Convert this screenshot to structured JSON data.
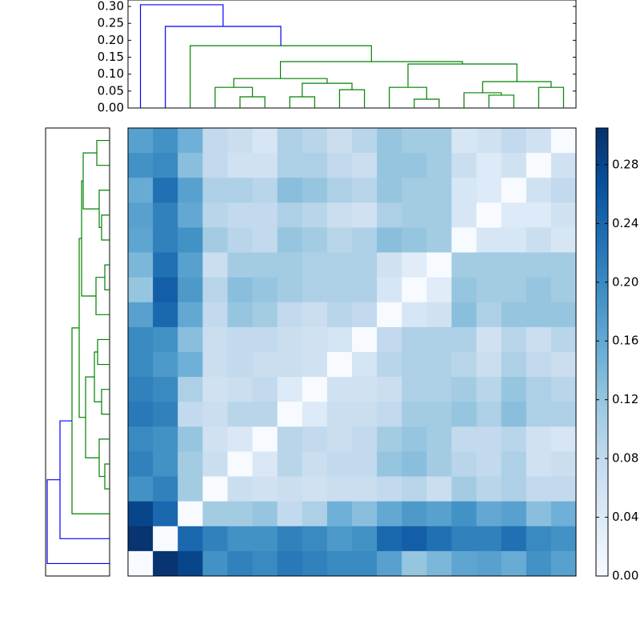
{
  "chart_data": {
    "type": "clustermap",
    "heatmap": {
      "values": [
        [
          0.17,
          0.19,
          0.15,
          0.08,
          0.07,
          0.05,
          0.1,
          0.09,
          0.07,
          0.09,
          0.12,
          0.11,
          0.11,
          0.05,
          0.06,
          0.08,
          0.06,
          0
        ],
        [
          0.19,
          0.2,
          0.13,
          0.08,
          0.06,
          0.06,
          0.1,
          0.1,
          0.08,
          0.07,
          0.12,
          0.12,
          0.11,
          0.07,
          0.04,
          0.06,
          0,
          0.06
        ],
        [
          0.155,
          0.23,
          0.17,
          0.1,
          0.1,
          0.09,
          0.13,
          0.12,
          0.1,
          0.09,
          0.12,
          0.11,
          0.11,
          0.05,
          0.04,
          0,
          0.06,
          0.08
        ],
        [
          0.17,
          0.21,
          0.16,
          0.09,
          0.08,
          0.08,
          0.1,
          0.09,
          0.07,
          0.06,
          0.1,
          0.11,
          0.11,
          0.05,
          0,
          0.04,
          0.04,
          0.06
        ],
        [
          0.165,
          0.21,
          0.19,
          0.11,
          0.09,
          0.08,
          0.12,
          0.11,
          0.09,
          0.1,
          0.13,
          0.12,
          0.11,
          0,
          0.05,
          0.05,
          0.07,
          0.05
        ],
        [
          0.14,
          0.23,
          0.17,
          0.07,
          0.11,
          0.11,
          0.11,
          0.1,
          0.1,
          0.1,
          0.06,
          0.035,
          0,
          0.11,
          0.11,
          0.11,
          0.11,
          0.11
        ],
        [
          0.12,
          0.25,
          0.18,
          0.09,
          0.13,
          0.12,
          0.11,
          0.1,
          0.1,
          0.1,
          0.05,
          0,
          0.035,
          0.12,
          0.11,
          0.11,
          0.12,
          0.11
        ],
        [
          0.17,
          0.24,
          0.16,
          0.08,
          0.12,
          0.11,
          0.08,
          0.07,
          0.09,
          0.08,
          0,
          0.05,
          0.06,
          0.13,
          0.1,
          0.12,
          0.12,
          0.12
        ],
        [
          0.2,
          0.19,
          0.13,
          0.07,
          0.08,
          0.08,
          0.07,
          0.06,
          0.055,
          0,
          0.08,
          0.1,
          0.1,
          0.1,
          0.06,
          0.09,
          0.07,
          0.09
        ],
        [
          0.2,
          0.18,
          0.15,
          0.07,
          0.08,
          0.07,
          0.07,
          0.06,
          0,
          0.055,
          0.09,
          0.1,
          0.1,
          0.09,
          0.07,
          0.1,
          0.08,
          0.07
        ],
        [
          0.21,
          0.2,
          0.1,
          0.06,
          0.07,
          0.08,
          0.04,
          0,
          0.06,
          0.06,
          0.07,
          0.1,
          0.1,
          0.11,
          0.09,
          0.12,
          0.1,
          0.09
        ],
        [
          0.22,
          0.21,
          0.08,
          0.07,
          0.09,
          0.09,
          0,
          0.04,
          0.07,
          0.07,
          0.08,
          0.11,
          0.11,
          0.12,
          0.1,
          0.13,
          0.1,
          0.1
        ],
        [
          0.2,
          0.19,
          0.12,
          0.06,
          0.045,
          0,
          0.09,
          0.08,
          0.07,
          0.08,
          0.11,
          0.12,
          0.11,
          0.08,
          0.08,
          0.09,
          0.06,
          0.05
        ],
        [
          0.21,
          0.19,
          0.11,
          0.07,
          0,
          0.045,
          0.09,
          0.07,
          0.08,
          0.08,
          0.12,
          0.13,
          0.11,
          0.09,
          0.08,
          0.1,
          0.06,
          0.07
        ],
        [
          0.19,
          0.21,
          0.11,
          0,
          0.07,
          0.06,
          0.07,
          0.06,
          0.07,
          0.07,
          0.08,
          0.09,
          0.07,
          0.11,
          0.09,
          0.1,
          0.08,
          0.08
        ],
        [
          0.28,
          0.24,
          0,
          0.11,
          0.11,
          0.12,
          0.08,
          0.1,
          0.15,
          0.13,
          0.16,
          0.18,
          0.17,
          0.19,
          0.16,
          0.17,
          0.13,
          0.15
        ],
        [
          0.3,
          0,
          0.24,
          0.21,
          0.19,
          0.19,
          0.21,
          0.2,
          0.18,
          0.19,
          0.24,
          0.25,
          0.23,
          0.21,
          0.21,
          0.23,
          0.2,
          0.19
        ],
        [
          0,
          0.3,
          0.28,
          0.19,
          0.21,
          0.2,
          0.22,
          0.21,
          0.2,
          0.2,
          0.17,
          0.12,
          0.14,
          0.165,
          0.17,
          0.155,
          0.19,
          0.17
        ]
      ],
      "clim": [
        0,
        0.305
      ],
      "cmap": [
        "#f7fbff",
        "#deebf7",
        "#c6dbef",
        "#9ecae1",
        "#6baed6",
        "#4292c6",
        "#2171b5",
        "#08519c",
        "#08306b"
      ],
      "colorbar_ticks": [
        {
          "value": 0,
          "label": "0.00"
        },
        {
          "value": 0.04,
          "label": "0.04"
        },
        {
          "value": 0.08,
          "label": "0.08"
        },
        {
          "value": 0.12,
          "label": "0.12"
        },
        {
          "value": 0.16,
          "label": "0.16"
        },
        {
          "value": 0.2,
          "label": "0.20"
        },
        {
          "value": 0.24,
          "label": "0.24"
        },
        {
          "value": 0.28,
          "label": "0.28"
        }
      ]
    },
    "top_dendrogram": {
      "xlim": [
        0,
        18
      ],
      "ylim": [
        0,
        0.319
      ],
      "yticks": [
        {
          "value": 0,
          "label": "0.00"
        },
        {
          "value": 0.05,
          "label": "0.05"
        },
        {
          "value": 0.1,
          "label": "0.10"
        },
        {
          "value": 0.15,
          "label": "0.15"
        },
        {
          "value": 0.2,
          "label": "0.20"
        },
        {
          "value": 0.25,
          "label": "0.25"
        },
        {
          "value": 0.3,
          "label": "0.30"
        }
      ],
      "links": [
        {
          "icoord": [
            4.5,
            4.5,
            5.5,
            5.5
          ],
          "dcoord": [
            0,
            0.033,
            0.033,
            0
          ],
          "color": "#008000"
        },
        {
          "icoord": [
            3.5,
            3.5,
            5,
            5
          ],
          "dcoord": [
            0,
            0.061,
            0.061,
            0.033
          ],
          "color": "#008000"
        },
        {
          "icoord": [
            6.5,
            6.5,
            7.5,
            7.5
          ],
          "dcoord": [
            0,
            0.033,
            0.033,
            0
          ],
          "color": "#008000"
        },
        {
          "icoord": [
            8.5,
            8.5,
            9.5,
            9.5
          ],
          "dcoord": [
            0,
            0.054,
            0.054,
            0
          ],
          "color": "#008000"
        },
        {
          "icoord": [
            7,
            7,
            9,
            9
          ],
          "dcoord": [
            0.033,
            0.073,
            0.073,
            0.054
          ],
          "color": "#008000"
        },
        {
          "icoord": [
            4.25,
            4.25,
            8,
            8
          ],
          "dcoord": [
            0.061,
            0.087,
            0.087,
            0.073
          ],
          "color": "#008000"
        },
        {
          "icoord": [
            11.5,
            11.5,
            12.5,
            12.5
          ],
          "dcoord": [
            0,
            0.026,
            0.026,
            0
          ],
          "color": "#008000"
        },
        {
          "icoord": [
            10.5,
            10.5,
            12,
            12
          ],
          "dcoord": [
            0,
            0.061,
            0.061,
            0.026
          ],
          "color": "#008000"
        },
        {
          "icoord": [
            14.5,
            14.5,
            15.5,
            15.5
          ],
          "dcoord": [
            0,
            0.038,
            0.038,
            0
          ],
          "color": "#008000"
        },
        {
          "icoord": [
            13.5,
            13.5,
            15,
            15
          ],
          "dcoord": [
            0,
            0.045,
            0.045,
            0.038
          ],
          "color": "#008000"
        },
        {
          "icoord": [
            16.5,
            16.5,
            17.5,
            17.5
          ],
          "dcoord": [
            0,
            0.061,
            0.061,
            0
          ],
          "color": "#008000"
        },
        {
          "icoord": [
            14.25,
            14.25,
            17,
            17
          ],
          "dcoord": [
            0.045,
            0.078,
            0.078,
            0.061
          ],
          "color": "#008000"
        },
        {
          "icoord": [
            11.25,
            11.25,
            15.625,
            15.625
          ],
          "dcoord": [
            0.061,
            0.13,
            0.13,
            0.078
          ],
          "color": "#008000"
        },
        {
          "icoord": [
            6.125,
            6.125,
            13.4375,
            13.4375
          ],
          "dcoord": [
            0.087,
            0.137,
            0.137,
            0.13
          ],
          "color": "#008000"
        },
        {
          "icoord": [
            2.5,
            2.5,
            9.78125,
            9.78125
          ],
          "dcoord": [
            0,
            0.184,
            0.184,
            0.137
          ],
          "color": "#008000"
        },
        {
          "icoord": [
            1.5,
            1.5,
            6.140625,
            6.140625
          ],
          "dcoord": [
            0,
            0.241,
            0.241,
            0.184
          ],
          "color": "#0000ff"
        },
        {
          "icoord": [
            0.5,
            0.5,
            3.8203125,
            3.8203125
          ],
          "dcoord": [
            0,
            0.305,
            0.305,
            0.241
          ],
          "color": "#0000ff"
        }
      ]
    },
    "left_dendrogram": {
      "xlim": [
        0,
        0.32
      ],
      "ylim": [
        0,
        18
      ],
      "links": [
        {
          "icoord": [
            0.5,
            0.5,
            1.5,
            1.5
          ],
          "dcoord": [
            0,
            0.064,
            0.064,
            0
          ],
          "color": "#008000"
        },
        {
          "icoord": [
            3.5,
            3.5,
            4.5,
            4.5
          ],
          "dcoord": [
            0,
            0.04,
            0.04,
            0
          ],
          "color": "#008000"
        },
        {
          "icoord": [
            2.5,
            2.5,
            4,
            4
          ],
          "dcoord": [
            0,
            0.052,
            0.052,
            0.04
          ],
          "color": "#008000"
        },
        {
          "icoord": [
            1,
            1,
            3.25,
            3.25
          ],
          "dcoord": [
            0.064,
            0.132,
            0.132,
            0.052
          ],
          "color": "#008000"
        },
        {
          "icoord": [
            5.5,
            5.5,
            6.5,
            6.5
          ],
          "dcoord": [
            0,
            0.024,
            0.024,
            0
          ],
          "color": "#008000"
        },
        {
          "icoord": [
            6,
            6,
            7.5,
            7.5
          ],
          "dcoord": [
            0.024,
            0.068,
            0.068,
            0
          ],
          "color": "#008000"
        },
        {
          "icoord": [
            2.125,
            2.125,
            6.75,
            6.75
          ],
          "dcoord": [
            0.132,
            0.14,
            0.14,
            0.068
          ],
          "color": "#008000"
        },
        {
          "icoord": [
            8.5,
            8.5,
            9.5,
            9.5
          ],
          "dcoord": [
            0,
            0.06,
            0.06,
            0
          ],
          "color": "#008000"
        },
        {
          "icoord": [
            10.5,
            10.5,
            11.5,
            11.5
          ],
          "dcoord": [
            0,
            0.04,
            0.04,
            0
          ],
          "color": "#008000"
        },
        {
          "icoord": [
            9,
            9,
            11,
            11
          ],
          "dcoord": [
            0.06,
            0.076,
            0.076,
            0.04
          ],
          "color": "#008000"
        },
        {
          "icoord": [
            13.5,
            13.5,
            14.5,
            14.5
          ],
          "dcoord": [
            0,
            0.024,
            0.024,
            0
          ],
          "color": "#008000"
        },
        {
          "icoord": [
            12.5,
            12.5,
            14,
            14
          ],
          "dcoord": [
            0,
            0.052,
            0.052,
            0.024
          ],
          "color": "#008000"
        },
        {
          "icoord": [
            10,
            10,
            13.25,
            13.25
          ],
          "dcoord": [
            0.076,
            0.12,
            0.12,
            0.052
          ],
          "color": "#008000"
        },
        {
          "icoord": [
            4.4375,
            4.4375,
            11.625,
            11.625
          ],
          "dcoord": [
            0.14,
            0.152,
            0.152,
            0.12
          ],
          "color": "#008000"
        },
        {
          "icoord": [
            8.03125,
            8.03125,
            15.5,
            15.5
          ],
          "dcoord": [
            0.152,
            0.188,
            0.188,
            0
          ],
          "color": "#008000"
        },
        {
          "icoord": [
            11.765625,
            11.765625,
            16.5,
            16.5
          ],
          "dcoord": [
            0.188,
            0.248,
            0.248,
            0
          ],
          "color": "#0000ff"
        },
        {
          "icoord": [
            14.1328125,
            14.1328125,
            17.5,
            17.5
          ],
          "dcoord": [
            0.248,
            0.312,
            0.312,
            0
          ],
          "color": "#0000ff"
        }
      ]
    }
  }
}
